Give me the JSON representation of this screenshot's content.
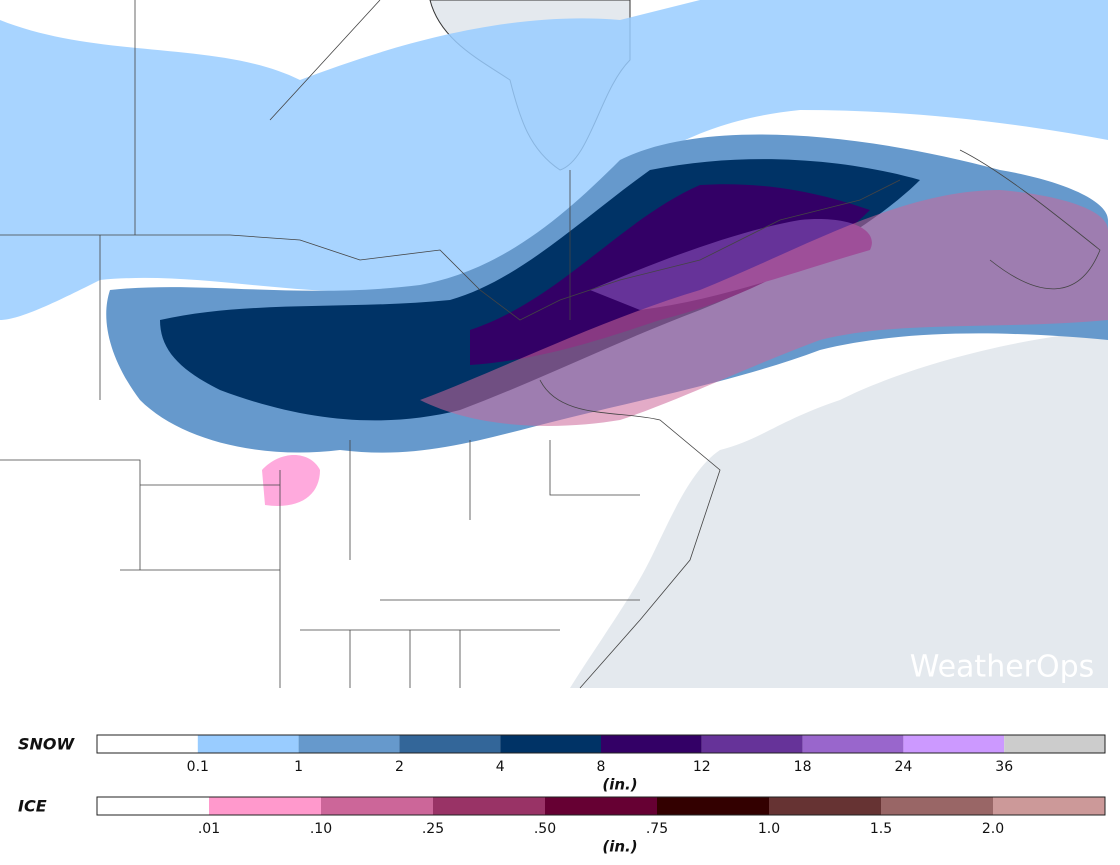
{
  "map": {
    "watermark": "WeatherOps",
    "ocean_color": "#e4e9ee",
    "land_color": "#ffffff"
  },
  "legends": [
    {
      "title": "SNOW",
      "unit": "(in.)",
      "colors": [
        "#ffffff",
        "#99ccff",
        "#6699cc",
        "#336699",
        "#003366",
        "#330066",
        "#663399",
        "#9966cc",
        "#cc99ff",
        "#cccccc"
      ],
      "labels": [
        "0.1",
        "1",
        "2",
        "4",
        "8",
        "12",
        "18",
        "24",
        "36"
      ]
    },
    {
      "title": "ICE",
      "unit": "(in.)",
      "colors": [
        "#ffffff",
        "#ff99cc",
        "#cc6699",
        "#993366",
        "#660033",
        "#330000",
        "#663333",
        "#996666",
        "#cc9999"
      ],
      "labels": [
        ".01",
        ".10",
        ".25",
        ".50",
        ".75",
        "1.0",
        "1.5",
        "2.0"
      ]
    }
  ]
}
